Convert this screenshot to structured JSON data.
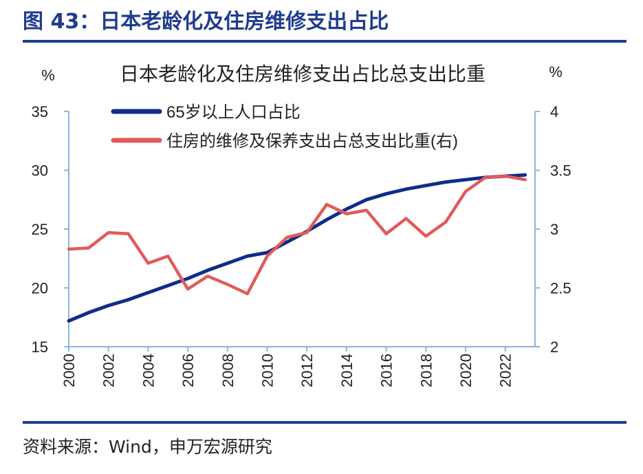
{
  "figure": {
    "title": "图 43：日本老龄化及住房维修支出占比",
    "source": "资料来源：Wind，申万宏源研究",
    "accent_color": "#1f3c8f"
  },
  "chart_data": {
    "type": "line",
    "title": "日本老龄化及住房维修支出占比总支出比重",
    "ylabel_left": "%",
    "ylabel_right": "%",
    "ylim_left": [
      15,
      35
    ],
    "yticks_left": [
      15,
      20,
      25,
      30,
      35
    ],
    "ylim_right": [
      2,
      4
    ],
    "yticks_right": [
      "2",
      "2.5",
      "3",
      "3.5",
      "4"
    ],
    "xlim": [
      2000,
      2023.5
    ],
    "xticks": [
      "2000",
      "2002",
      "2004",
      "2006",
      "2008",
      "2010",
      "2012",
      "2014",
      "2016",
      "2018",
      "2020",
      "2022"
    ],
    "grid": false,
    "legend_position": "top-left",
    "series": [
      {
        "name": "65岁以上人口占比",
        "axis": "left",
        "color": "#0f2c8c",
        "x": [
          2000,
          2001,
          2002,
          2003,
          2004,
          2005,
          2006,
          2007,
          2008,
          2009,
          2010,
          2011,
          2012,
          2013,
          2014,
          2015,
          2016,
          2017,
          2018,
          2019,
          2020,
          2021,
          2022,
          2023
        ],
        "values": [
          17.2,
          17.9,
          18.5,
          19.0,
          19.6,
          20.2,
          20.8,
          21.5,
          22.1,
          22.7,
          23.0,
          23.9,
          24.8,
          25.8,
          26.7,
          27.5,
          28.0,
          28.4,
          28.7,
          29.0,
          29.2,
          29.4,
          29.5,
          29.6
        ]
      },
      {
        "name": "住房的维修及保养支出占总支出比重(右)",
        "axis": "right",
        "color": "#e15a5a",
        "x": [
          2000,
          2001,
          2002,
          2003,
          2004,
          2005,
          2006,
          2007,
          2008,
          2009,
          2010,
          2011,
          2012,
          2013,
          2014,
          2015,
          2016,
          2017,
          2018,
          2019,
          2020,
          2021,
          2022,
          2023
        ],
        "values": [
          2.83,
          2.84,
          2.97,
          2.96,
          2.71,
          2.77,
          2.49,
          2.6,
          2.53,
          2.45,
          2.77,
          2.93,
          2.97,
          3.21,
          3.13,
          3.16,
          2.96,
          3.09,
          2.94,
          3.06,
          3.32,
          3.44,
          3.45,
          3.42
        ]
      }
    ]
  }
}
